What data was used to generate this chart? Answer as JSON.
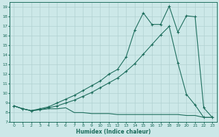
{
  "xlabel": "Humidex (Indice chaleur)",
  "bg_color": "#cce8e8",
  "line_color": "#1a6b5a",
  "grid_color": "#b0d0d0",
  "xlim": [
    -0.5,
    23.5
  ],
  "ylim": [
    7,
    19.5
  ],
  "yticks": [
    7,
    8,
    9,
    10,
    11,
    12,
    13,
    14,
    15,
    16,
    17,
    18,
    19
  ],
  "xticks": [
    0,
    1,
    2,
    3,
    4,
    5,
    6,
    7,
    8,
    9,
    10,
    11,
    12,
    13,
    14,
    15,
    16,
    17,
    18,
    19,
    20,
    21,
    22,
    23
  ],
  "line1_x": [
    0,
    1,
    2,
    3,
    4,
    5,
    6,
    7,
    8,
    9,
    10,
    11,
    12,
    13,
    14,
    15,
    16,
    17,
    18,
    19,
    20,
    21,
    22,
    23
  ],
  "line1_y": [
    8.7,
    8.4,
    8.2,
    8.3,
    8.4,
    8.4,
    8.5,
    8.0,
    8.0,
    7.9,
    7.9,
    7.9,
    7.8,
    7.8,
    7.8,
    7.8,
    7.8,
    7.8,
    7.8,
    7.8,
    7.7,
    7.7,
    7.5,
    7.5
  ],
  "line2_x": [
    0,
    1,
    2,
    3,
    4,
    5,
    6,
    7,
    8,
    9,
    10,
    11,
    12,
    13,
    14,
    15,
    16,
    17,
    18,
    19,
    20,
    21,
    22,
    23
  ],
  "line2_y": [
    8.7,
    8.4,
    8.2,
    8.3,
    8.5,
    8.7,
    9.0,
    9.3,
    9.7,
    10.1,
    10.6,
    11.1,
    11.6,
    12.3,
    13.1,
    14.1,
    15.1,
    16.1,
    17.0,
    13.2,
    9.9,
    8.8,
    7.5,
    7.5
  ],
  "line3_x": [
    0,
    1,
    2,
    3,
    4,
    5,
    6,
    7,
    8,
    9,
    10,
    11,
    12,
    13,
    14,
    15,
    16,
    17,
    18,
    19,
    20,
    21,
    22,
    23
  ],
  "line3_y": [
    8.7,
    8.4,
    8.2,
    8.4,
    8.6,
    9.0,
    9.4,
    9.8,
    10.3,
    10.8,
    11.3,
    12.0,
    12.5,
    13.8,
    16.6,
    18.4,
    17.2,
    17.2,
    19.1,
    16.4,
    18.1,
    18.0,
    8.5,
    7.5
  ]
}
